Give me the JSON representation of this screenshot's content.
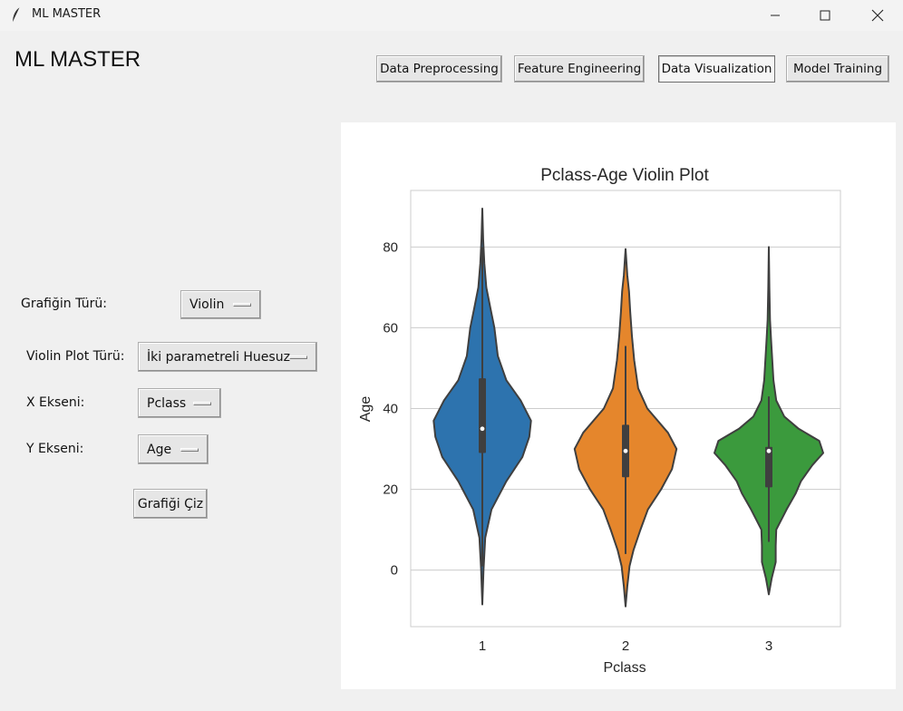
{
  "window": {
    "title": "ML MASTER"
  },
  "app": {
    "heading": "ML MASTER"
  },
  "nav": {
    "data_preprocessing": "Data Preprocessing",
    "feature_engineering": "Feature Engineering",
    "data_visualization": "Data Visualization",
    "model_training": "Model Training",
    "active": "Data Visualization"
  },
  "controls": {
    "chart_type_label": "Grafiğin Türü:",
    "chart_type_value": "Violin",
    "violin_type_label": "Violin Plot Türü:",
    "violin_type_value": "İki parametreli Huesuz",
    "x_axis_label": "X Ekseni:",
    "x_axis_value": "Pclass",
    "y_axis_label": "Y Ekseni:",
    "y_axis_value": "Age",
    "draw_button": "Grafiği Çiz"
  },
  "chart_data": {
    "type": "violin",
    "title": "Pclass-Age Violin Plot",
    "xlabel": "Pclass",
    "ylabel": "Age",
    "categories": [
      "1",
      "2",
      "3"
    ],
    "colors": [
      "#2d73ae",
      "#e5862c",
      "#3b9a3d"
    ],
    "ylim": [
      -14,
      94
    ],
    "yticks": [
      0,
      20,
      40,
      60,
      80
    ],
    "grid": true,
    "violins": [
      {
        "category": "1",
        "min": -8.5,
        "max": 89.5,
        "q1": 29,
        "median": 35,
        "q3": 47.5,
        "whisker_low": 0.9,
        "whisker_high": 80,
        "profile": [
          [
            -8.5,
            0
          ],
          [
            0,
            0.02
          ],
          [
            8,
            0.05
          ],
          [
            15,
            0.16
          ],
          [
            22,
            0.42
          ],
          [
            28,
            0.7
          ],
          [
            33,
            0.82
          ],
          [
            37,
            0.85
          ],
          [
            42,
            0.67
          ],
          [
            47,
            0.42
          ],
          [
            53,
            0.27
          ],
          [
            60,
            0.21
          ],
          [
            65,
            0.14
          ],
          [
            70,
            0.07
          ],
          [
            76,
            0.035
          ],
          [
            82,
            0.015
          ],
          [
            89.5,
            0
          ]
        ]
      },
      {
        "category": "2",
        "min": -9,
        "max": 79.5,
        "q1": 23,
        "median": 29.5,
        "q3": 36,
        "whisker_low": 4,
        "whisker_high": 55.5,
        "profile": [
          [
            -9,
            0
          ],
          [
            -4,
            0.03
          ],
          [
            1,
            0.07
          ],
          [
            5,
            0.14
          ],
          [
            10,
            0.26
          ],
          [
            15,
            0.39
          ],
          [
            20,
            0.62
          ],
          [
            25,
            0.81
          ],
          [
            30,
            0.89
          ],
          [
            34,
            0.74
          ],
          [
            40,
            0.38
          ],
          [
            45,
            0.22
          ],
          [
            52,
            0.15
          ],
          [
            58,
            0.11
          ],
          [
            64,
            0.08
          ],
          [
            69,
            0.06
          ],
          [
            73,
            0.03
          ],
          [
            79.5,
            0
          ]
        ]
      },
      {
        "category": "3",
        "min": -6,
        "max": 80,
        "q1": 20.5,
        "median": 29.5,
        "q3": 30.5,
        "whisker_low": 7,
        "whisker_high": 43,
        "profile": [
          [
            -6,
            0
          ],
          [
            -2,
            0.05
          ],
          [
            2,
            0.12
          ],
          [
            6,
            0.12
          ],
          [
            10,
            0.13
          ],
          [
            15,
            0.31
          ],
          [
            19,
            0.47
          ],
          [
            22,
            0.56
          ],
          [
            26,
            0.76
          ],
          [
            29,
            0.95
          ],
          [
            32,
            0.88
          ],
          [
            35,
            0.52
          ],
          [
            38,
            0.27
          ],
          [
            42,
            0.13
          ],
          [
            47,
            0.08
          ],
          [
            52,
            0.06
          ],
          [
            57,
            0.04
          ],
          [
            62,
            0.02
          ],
          [
            70,
            0.01
          ],
          [
            80,
            0
          ]
        ]
      }
    ]
  }
}
